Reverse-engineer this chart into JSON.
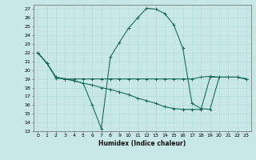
{
  "xlabel": "Humidex (Indice chaleur)",
  "bg_color": "#c8e8e8",
  "grid_color": "#b0d8d8",
  "line_color": "#1a6b5a",
  "xlim": [
    -0.5,
    23.5
  ],
  "ylim": [
    13,
    27.5
  ],
  "yticks": [
    13,
    14,
    15,
    16,
    17,
    18,
    19,
    20,
    21,
    22,
    23,
    24,
    25,
    26,
    27
  ],
  "xticks": [
    0,
    1,
    2,
    3,
    4,
    5,
    6,
    7,
    8,
    9,
    10,
    11,
    12,
    13,
    14,
    15,
    16,
    17,
    18,
    19,
    20,
    21,
    22,
    23
  ],
  "line1_x": [
    0,
    1,
    2,
    3,
    4,
    5,
    6,
    7,
    8,
    9,
    10,
    11,
    12,
    13,
    14,
    15,
    16,
    17,
    18,
    19,
    20,
    21,
    22,
    23
  ],
  "line1_y": [
    22.0,
    20.8,
    19.1,
    19.0,
    19.0,
    19.0,
    19.0,
    19.0,
    19.0,
    19.0,
    19.0,
    19.0,
    19.0,
    19.0,
    19.0,
    19.0,
    19.0,
    19.0,
    19.2,
    19.3,
    19.2,
    19.2,
    19.2,
    19.0
  ],
  "line2_x": [
    0,
    1,
    2,
    3,
    4,
    5,
    6,
    7,
    8,
    9,
    10,
    11,
    12,
    13,
    14,
    15,
    16,
    17,
    18,
    19,
    20,
    21,
    22,
    23
  ],
  "line2_y": [
    22.0,
    20.8,
    19.2,
    19.0,
    18.8,
    18.5,
    16.0,
    13.3,
    21.5,
    23.2,
    24.8,
    26.0,
    27.1,
    27.0,
    26.5,
    25.2,
    22.5,
    16.2,
    15.6,
    15.5,
    19.2,
    19.2,
    19.2,
    19.0
  ],
  "line3_x": [
    0,
    1,
    2,
    3,
    4,
    5,
    6,
    7,
    8,
    9,
    10,
    11,
    12,
    13,
    14,
    15,
    16,
    17,
    18,
    19,
    20,
    21,
    22,
    23
  ],
  "line3_y": [
    22.0,
    20.8,
    19.2,
    19.0,
    18.8,
    18.5,
    18.3,
    18.0,
    17.8,
    17.5,
    17.2,
    16.8,
    16.5,
    16.2,
    15.8,
    15.6,
    15.5,
    15.5,
    15.5,
    19.2,
    19.2,
    19.2,
    19.2,
    19.0
  ]
}
